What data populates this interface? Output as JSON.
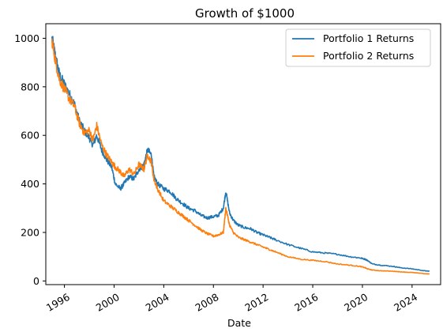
{
  "chart_data": {
    "type": "line",
    "title": "Growth of $1000",
    "xlabel": "Date",
    "ylabel": "",
    "xlim": [
      1994.5,
      2026.3
    ],
    "ylim": [
      -15,
      1060
    ],
    "x_ticks": [
      1996,
      2000,
      2004,
      2008,
      2012,
      2016,
      2020,
      2024
    ],
    "y_ticks": [
      0,
      200,
      400,
      600,
      800,
      1000
    ],
    "grid": false,
    "legend_position": "top-right",
    "series": [
      {
        "name": "Portfolio 1 Returns",
        "color": "#1f77b4",
        "x": [
          1995.0,
          1995.3,
          1995.6,
          1996.0,
          1996.4,
          1996.8,
          1997.2,
          1997.6,
          1998.0,
          1998.3,
          1998.6,
          1999.0,
          1999.4,
          1999.8,
          2000.1,
          2000.5,
          2000.8,
          2001.2,
          2001.6,
          2002.0,
          2002.4,
          2002.7,
          2003.0,
          2003.2,
          2003.5,
          2004.0,
          2004.5,
          2005.0,
          2005.5,
          2006.0,
          2006.5,
          2007.0,
          2007.5,
          2008.0,
          2008.4,
          2008.8,
          2009.0,
          2009.3,
          2009.6,
          2010.0,
          2010.5,
          2011.0,
          2011.5,
          2012.0,
          2012.5,
          2013.0,
          2014.0,
          2015.0,
          2016.0,
          2017.0,
          2018.0,
          2019.0,
          2019.8,
          2020.2,
          2020.4,
          2020.8,
          2021.5,
          2022.5,
          2023.0,
          2024.0,
          2025.0,
          2025.4
        ],
        "values": [
          1000,
          920,
          850,
          810,
          770,
          730,
          660,
          620,
          590,
          560,
          600,
          540,
          500,
          470,
          400,
          380,
          400,
          430,
          420,
          460,
          480,
          540,
          520,
          430,
          400,
          380,
          370,
          340,
          320,
          300,
          290,
          270,
          260,
          265,
          270,
          300,
          370,
          280,
          250,
          230,
          220,
          215,
          200,
          190,
          180,
          170,
          150,
          135,
          120,
          115,
          110,
          100,
          95,
          90,
          85,
          70,
          65,
          60,
          55,
          50,
          42,
          40
        ]
      },
      {
        "name": "Portfolio 2 Returns",
        "color": "#ff7f0e",
        "x": [
          1995.0,
          1995.3,
          1995.6,
          1996.0,
          1996.4,
          1996.8,
          1997.2,
          1997.6,
          1998.0,
          1998.3,
          1998.6,
          1999.0,
          1999.4,
          1999.8,
          2000.1,
          2000.5,
          2000.8,
          2001.2,
          2001.6,
          2002.0,
          2002.4,
          2002.7,
          2003.0,
          2003.2,
          2003.5,
          2004.0,
          2004.5,
          2005.0,
          2005.5,
          2006.0,
          2006.5,
          2007.0,
          2007.5,
          2008.0,
          2008.4,
          2008.8,
          2009.0,
          2009.3,
          2009.6,
          2010.0,
          2010.5,
          2011.0,
          2011.5,
          2012.0,
          2012.5,
          2013.0,
          2014.0,
          2015.0,
          2016.0,
          2017.0,
          2018.0,
          2019.0,
          2019.8,
          2020.2,
          2020.4,
          2020.8,
          2021.5,
          2022.5,
          2023.0,
          2024.0,
          2025.0,
          2025.4
        ],
        "values": [
          990,
          900,
          830,
          790,
          750,
          720,
          650,
          610,
          620,
          580,
          640,
          560,
          520,
          490,
          470,
          450,
          430,
          460,
          440,
          480,
          460,
          520,
          490,
          420,
          380,
          330,
          310,
          290,
          270,
          250,
          230,
          210,
          195,
          185,
          190,
          200,
          300,
          230,
          200,
          180,
          170,
          160,
          150,
          140,
          130,
          120,
          100,
          90,
          85,
          80,
          70,
          65,
          60,
          55,
          50,
          45,
          42,
          40,
          38,
          35,
          30,
          29
        ]
      }
    ]
  }
}
